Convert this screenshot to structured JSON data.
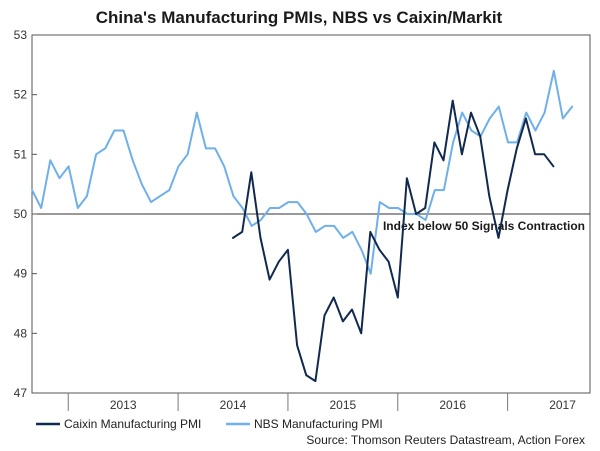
{
  "chart_data": {
    "type": "line",
    "title": "China's Manufacturing PMIs, NBS vs Caixin/Markit",
    "xlabel": "",
    "ylabel": "",
    "ylim": [
      47,
      53
    ],
    "xlim": [
      2012.67,
      2017.75
    ],
    "yticks": [
      47,
      48,
      49,
      50,
      51,
      52,
      53
    ],
    "xtick_labels": [
      "2013",
      "2014",
      "2015",
      "2016",
      "2017"
    ],
    "xtick_positions": [
      2013.5,
      2014.5,
      2015.5,
      2016.5,
      2017.5
    ],
    "year_dividers": [
      2013,
      2014,
      2015,
      2016,
      2017
    ],
    "reference_line": {
      "value": 50,
      "label": "Index below 50 Signals Contraction"
    },
    "series": [
      {
        "name": "Caixin Manufacturing PMI",
        "color": "#12294f",
        "start": 2014.5,
        "values": [
          49.6,
          49.7,
          50.7,
          49.6,
          48.9,
          49.2,
          49.4,
          47.8,
          47.3,
          47.2,
          48.3,
          48.6,
          48.2,
          48.4,
          48.0,
          49.7,
          49.4,
          49.2,
          48.6,
          50.6,
          50.0,
          50.1,
          51.2,
          50.9,
          51.9,
          51.0,
          51.7,
          51.3,
          50.3,
          49.6,
          50.4,
          51.1,
          51.6,
          51.0,
          51.0,
          50.8
        ]
      },
      {
        "name": "NBS Manufacturing PMI",
        "color": "#6fb0ea",
        "start": 2012.67,
        "values": [
          50.4,
          50.1,
          50.9,
          50.6,
          50.8,
          50.1,
          50.3,
          51.0,
          51.1,
          51.4,
          51.4,
          50.9,
          50.5,
          50.2,
          50.3,
          50.4,
          50.8,
          51.0,
          51.7,
          51.1,
          51.1,
          50.8,
          50.3,
          50.1,
          49.8,
          49.9,
          50.1,
          50.1,
          50.2,
          50.2,
          50.0,
          49.7,
          49.8,
          49.8,
          49.6,
          49.7,
          49.4,
          49.0,
          50.2,
          50.1,
          50.1,
          50.0,
          50.0,
          49.9,
          50.4,
          50.4,
          51.2,
          51.7,
          51.4,
          51.3,
          51.6,
          51.8,
          51.2,
          51.2,
          51.7,
          51.4,
          51.7,
          52.4,
          51.6,
          51.8
        ]
      }
    ],
    "source": "Source: Thomson Reuters Datastream, Action Forex"
  }
}
